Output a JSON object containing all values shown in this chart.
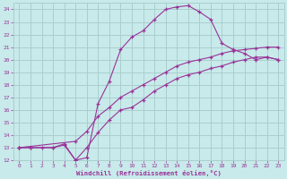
{
  "xlabel": "Windchill (Refroidissement éolien,°C)",
  "bg_color": "#c8eaea",
  "grid_color": "#aacece",
  "line_color": "#993399",
  "xlim": [
    -0.5,
    23.5
  ],
  "ylim": [
    12,
    24.5
  ],
  "xticks": [
    0,
    1,
    2,
    3,
    4,
    5,
    6,
    7,
    8,
    9,
    10,
    11,
    12,
    13,
    14,
    15,
    16,
    17,
    18,
    19,
    20,
    21,
    22,
    23
  ],
  "yticks": [
    12,
    13,
    14,
    15,
    16,
    17,
    18,
    19,
    20,
    21,
    22,
    23,
    24
  ],
  "curve1_x": [
    0,
    1,
    3,
    4,
    5,
    6,
    7,
    8,
    9,
    10,
    11,
    12,
    13,
    14,
    15,
    16,
    17,
    18,
    19,
    20,
    21,
    22,
    23
  ],
  "curve1_y": [
    13.0,
    13.0,
    13.0,
    13.3,
    12.0,
    12.2,
    16.5,
    18.3,
    20.8,
    21.8,
    22.3,
    23.2,
    24.0,
    24.2,
    24.3,
    23.8,
    23.2,
    21.3,
    20.8,
    20.5,
    20.0,
    20.2,
    20.0
  ],
  "curve2_x": [
    0,
    1,
    2,
    3,
    4,
    5,
    6,
    7,
    8,
    9,
    10,
    11,
    12,
    13,
    14,
    15,
    16,
    17,
    18,
    19,
    20,
    21,
    22,
    23
  ],
  "curve2_y": [
    13.0,
    13.0,
    13.0,
    13.0,
    13.2,
    12.0,
    13.0,
    14.2,
    15.2,
    16.0,
    16.2,
    16.8,
    17.5,
    18.0,
    18.5,
    18.8,
    19.0,
    19.3,
    19.5,
    19.8,
    20.0,
    20.2,
    20.2,
    20.0
  ],
  "curve3_x": [
    0,
    5,
    6,
    7,
    8,
    9,
    10,
    11,
    12,
    13,
    14,
    15,
    16,
    17,
    18,
    19,
    20,
    21,
    22,
    23
  ],
  "curve3_y": [
    13.0,
    13.5,
    14.3,
    15.5,
    16.2,
    17.0,
    17.5,
    18.0,
    18.5,
    19.0,
    19.5,
    19.8,
    20.0,
    20.2,
    20.5,
    20.7,
    20.8,
    20.9,
    21.0,
    21.0
  ]
}
